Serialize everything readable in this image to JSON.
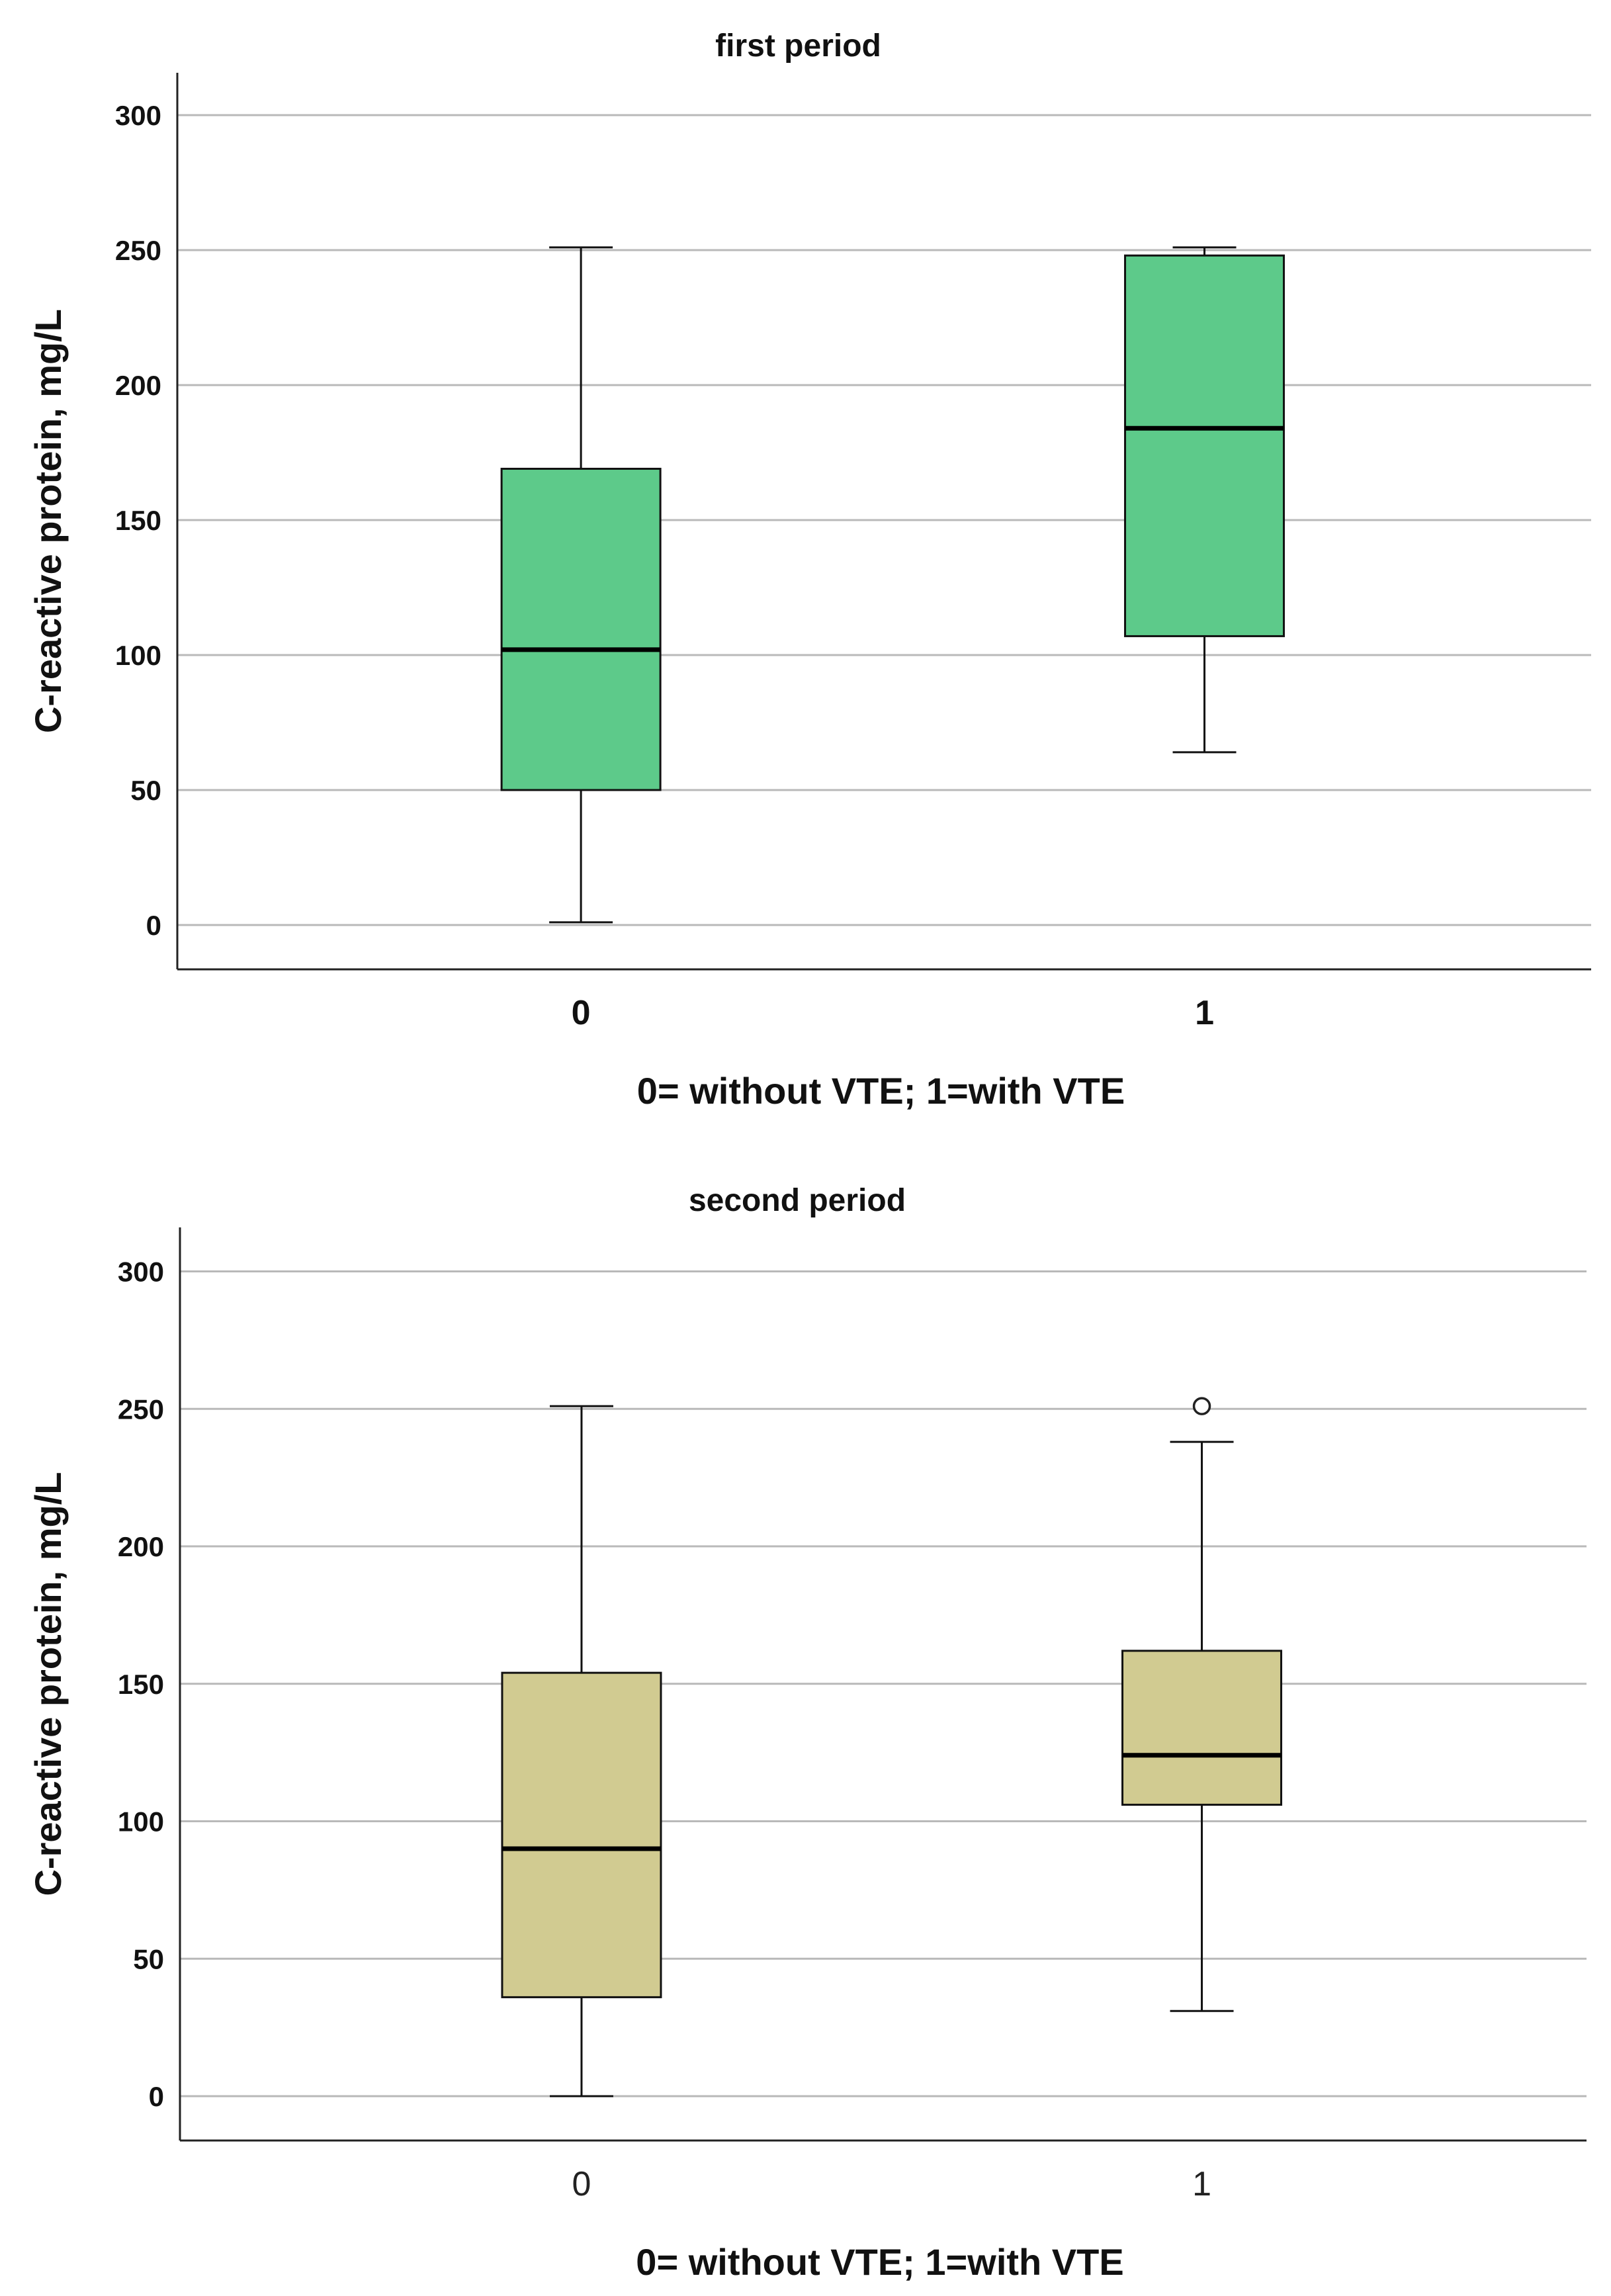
{
  "chart_data": [
    {
      "type": "box",
      "title": "first period",
      "xlabel": "0= without VTE; 1=with VTE",
      "ylabel": "C-reactive protein, mg/L",
      "categories": [
        "0",
        "1"
      ],
      "ylim": [
        -15,
        317
      ],
      "yticks": [
        "0",
        "50",
        "100",
        "150",
        "200",
        "250",
        "300"
      ],
      "grid": true,
      "box_color": "#5dca8a",
      "xtick_style": "bold",
      "boxes": [
        {
          "category": "0",
          "min": 1,
          "q1": 50,
          "median": 102,
          "q3": 169,
          "max": 251,
          "outliers": []
        },
        {
          "category": "1",
          "min": 64,
          "q1": 107,
          "median": 184,
          "q3": 248,
          "max": 251,
          "outliers": []
        }
      ]
    },
    {
      "type": "box",
      "title": "second period",
      "xlabel": "0= without VTE; 1=with VTE",
      "ylabel": "C-reactive protein, mg/L",
      "categories": [
        "0",
        "1"
      ],
      "ylim": [
        -16,
        317
      ],
      "yticks": [
        "0",
        "50",
        "100",
        "150",
        "200",
        "250",
        "300"
      ],
      "grid": true,
      "box_color": "#d1cb91",
      "xtick_style": "plain",
      "boxes": [
        {
          "category": "0",
          "min": 0,
          "q1": 36,
          "median": 90,
          "q3": 154,
          "max": 251,
          "outliers": []
        },
        {
          "category": "1",
          "min": 31,
          "q1": 106,
          "median": 124,
          "q3": 162,
          "max": 238,
          "outliers": [
            251
          ]
        }
      ]
    }
  ]
}
